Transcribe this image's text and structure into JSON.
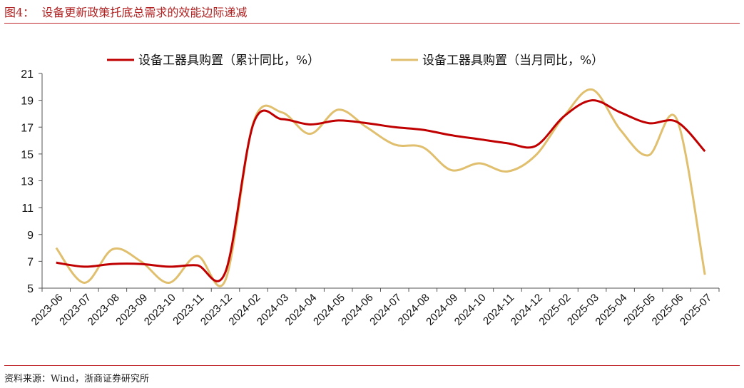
{
  "title": "图4：  设备更新政策托底总需求的效能边际递减",
  "source": "资料来源：Wind，浙商证券研究所",
  "colors": {
    "cumulative": "#C00000",
    "monthly": "#E0BF6E",
    "rule": "#C0282D"
  },
  "chart_data": {
    "type": "line",
    "title": "图4：设备更新政策托底总需求的效能边际递减",
    "xlabel": "",
    "ylabel": "",
    "ylim": [
      5,
      21
    ],
    "yticks": [
      5,
      7,
      9,
      11,
      13,
      15,
      17,
      19,
      21
    ],
    "grid": false,
    "legend": "top",
    "categories": [
      "2023-06",
      "2023-07",
      "2023-08",
      "2023-09",
      "2023-10",
      "2023-11",
      "2023-12",
      "2024-02",
      "2024-03",
      "2024-04",
      "2024-05",
      "2024-06",
      "2024-07",
      "2024-08",
      "2024-09",
      "2024-10",
      "2024-11",
      "2024-12",
      "2025-02",
      "2025-03",
      "2025-04",
      "2025-05",
      "2025-06",
      "2025-07"
    ],
    "series": [
      {
        "name": "设备工器具购置（累计同比，%）",
        "values": [
          6.9,
          6.6,
          6.8,
          6.8,
          6.6,
          6.7,
          6.2,
          17.3,
          17.6,
          17.2,
          17.5,
          17.3,
          17.0,
          16.8,
          16.4,
          16.1,
          15.8,
          15.6,
          17.8,
          19.0,
          18.1,
          17.3,
          17.4,
          15.2
        ]
      },
      {
        "name": "设备工器具购置（当月同比，%）",
        "values": [
          8.0,
          5.4,
          7.9,
          7.0,
          5.4,
          7.4,
          5.6,
          17.4,
          18.1,
          16.5,
          18.3,
          17.0,
          15.7,
          15.5,
          13.8,
          14.3,
          13.7,
          14.9,
          17.8,
          19.8,
          16.8,
          14.9,
          17.6,
          6.0
        ]
      }
    ]
  }
}
